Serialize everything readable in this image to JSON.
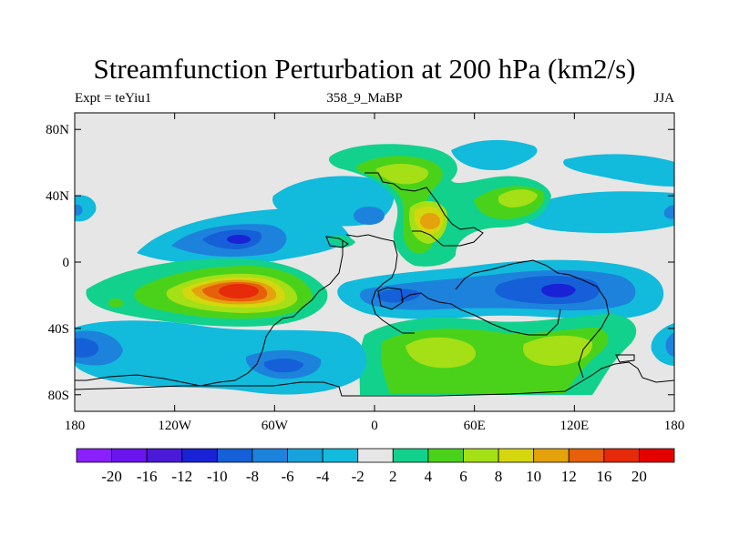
{
  "chart_data": {
    "type": "heatmap",
    "title": "Streamfunction Perturbation at 200 hPa (km2/s)",
    "left_label": "Expt = teYiu1",
    "center_label": "358_9_MaBP",
    "right_label": "JJA",
    "x_ticks": [
      {
        "value": -180,
        "label": "180"
      },
      {
        "value": -120,
        "label": "120W"
      },
      {
        "value": -60,
        "label": "60W"
      },
      {
        "value": 0,
        "label": "0"
      },
      {
        "value": 60,
        "label": "60E"
      },
      {
        "value": 120,
        "label": "120E"
      },
      {
        "value": 180,
        "label": "180"
      }
    ],
    "y_ticks": [
      {
        "value": 80,
        "label": "80N"
      },
      {
        "value": 40,
        "label": "40N"
      },
      {
        "value": 0,
        "label": "0"
      },
      {
        "value": -40,
        "label": "40S"
      },
      {
        "value": -80,
        "label": "80S"
      }
    ],
    "xlim": [
      -180,
      180
    ],
    "ylim": [
      -90,
      90
    ],
    "colorbar": {
      "levels": [
        "-20",
        "-16",
        "-12",
        "-10",
        "-8",
        "-6",
        "-4",
        "-2",
        "2",
        "4",
        "6",
        "8",
        "10",
        "12",
        "16",
        "20"
      ],
      "colors": [
        "#8a1fff",
        "#6a14ee",
        "#4a1ad8",
        "#1a22d6",
        "#1560d8",
        "#1d82dc",
        "#18a2dc",
        "#12badc",
        "#e6e6e6",
        "#12d18c",
        "#4ad21a",
        "#a5df16",
        "#d4d70e",
        "#e4a20c",
        "#e65f0a",
        "#e62a0a",
        "#e50000"
      ]
    },
    "features": [
      {
        "name": "positive-center-south-america",
        "lon": -72,
        "lat": -20,
        "peak": 18
      },
      {
        "name": "negative-center-caribbean",
        "lon": -88,
        "lat": 12,
        "peak": -10
      },
      {
        "name": "negative-center-southeast-asia",
        "lon": 113,
        "lat": -19,
        "peak": -10
      },
      {
        "name": "positive-center-middle-east",
        "lon": 37,
        "lat": 22,
        "peak": 11
      },
      {
        "name": "positive-band-southern-ocean",
        "lon": 60,
        "lat": -55,
        "peak": 6
      },
      {
        "name": "negative-center-south-pacific",
        "lon": -170,
        "lat": -52,
        "peak": -8
      }
    ]
  }
}
